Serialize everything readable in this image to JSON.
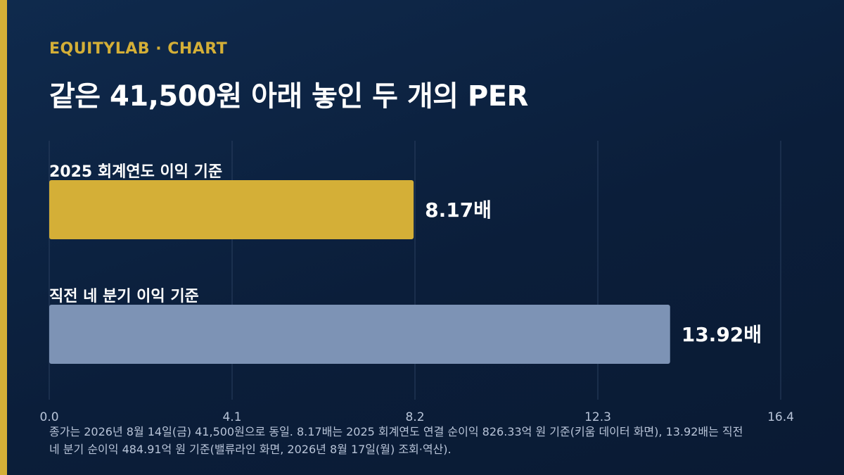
{
  "header": {
    "eyebrow": "EQUITYLAB · CHART",
    "title": "같은 41,500원 아래 놓인 두 개의 PER"
  },
  "colors": {
    "background": "#0b1e3a",
    "accent": "#d4af37",
    "series_2025": "#d4af37",
    "series_ttm": "#7d93b5",
    "gridline": "#2a3f5f"
  },
  "chart_data": {
    "type": "bar",
    "orientation": "horizontal",
    "categories": [
      "2025 회계연도 이익 기준",
      "직전 네 분기 이익 기준"
    ],
    "values": [
      8.17,
      13.92
    ],
    "value_labels": [
      "8.17배",
      "13.92배"
    ],
    "bar_colors": [
      "#d4af37",
      "#7d93b5"
    ],
    "xlim": [
      0,
      16.4
    ],
    "xticks": [
      0,
      4.1,
      8.2,
      12.3,
      16.4
    ],
    "xtick_labels": [
      "0.0",
      "4.1",
      "8.2",
      "12.3",
      "16.4"
    ],
    "grid": true
  },
  "footnote": "종가는 2026년 8월 14일(금) 41,500원으로 동일. 8.17배는 2025 회계연도 연결 순이익 826.33억 원 기준(키움 데이터 화면), 13.92배는 직전 네 분기 순이익 484.91억 원 기준(밸류라인 화면, 2026년 8월 17일(월) 조회·역산)."
}
